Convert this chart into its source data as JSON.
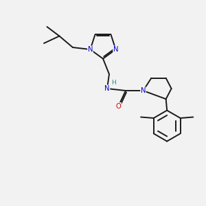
{
  "background_color": "#f2f2f2",
  "bond_color": "#1a1a1a",
  "N_color": "#0000cc",
  "O_color": "#cc0000",
  "H_color": "#2e8b8b",
  "figsize": [
    3.0,
    3.0
  ],
  "dpi": 100,
  "xlim": [
    0,
    10
  ],
  "ylim": [
    0,
    10
  ],
  "lw": 1.4,
  "fs": 7.2
}
